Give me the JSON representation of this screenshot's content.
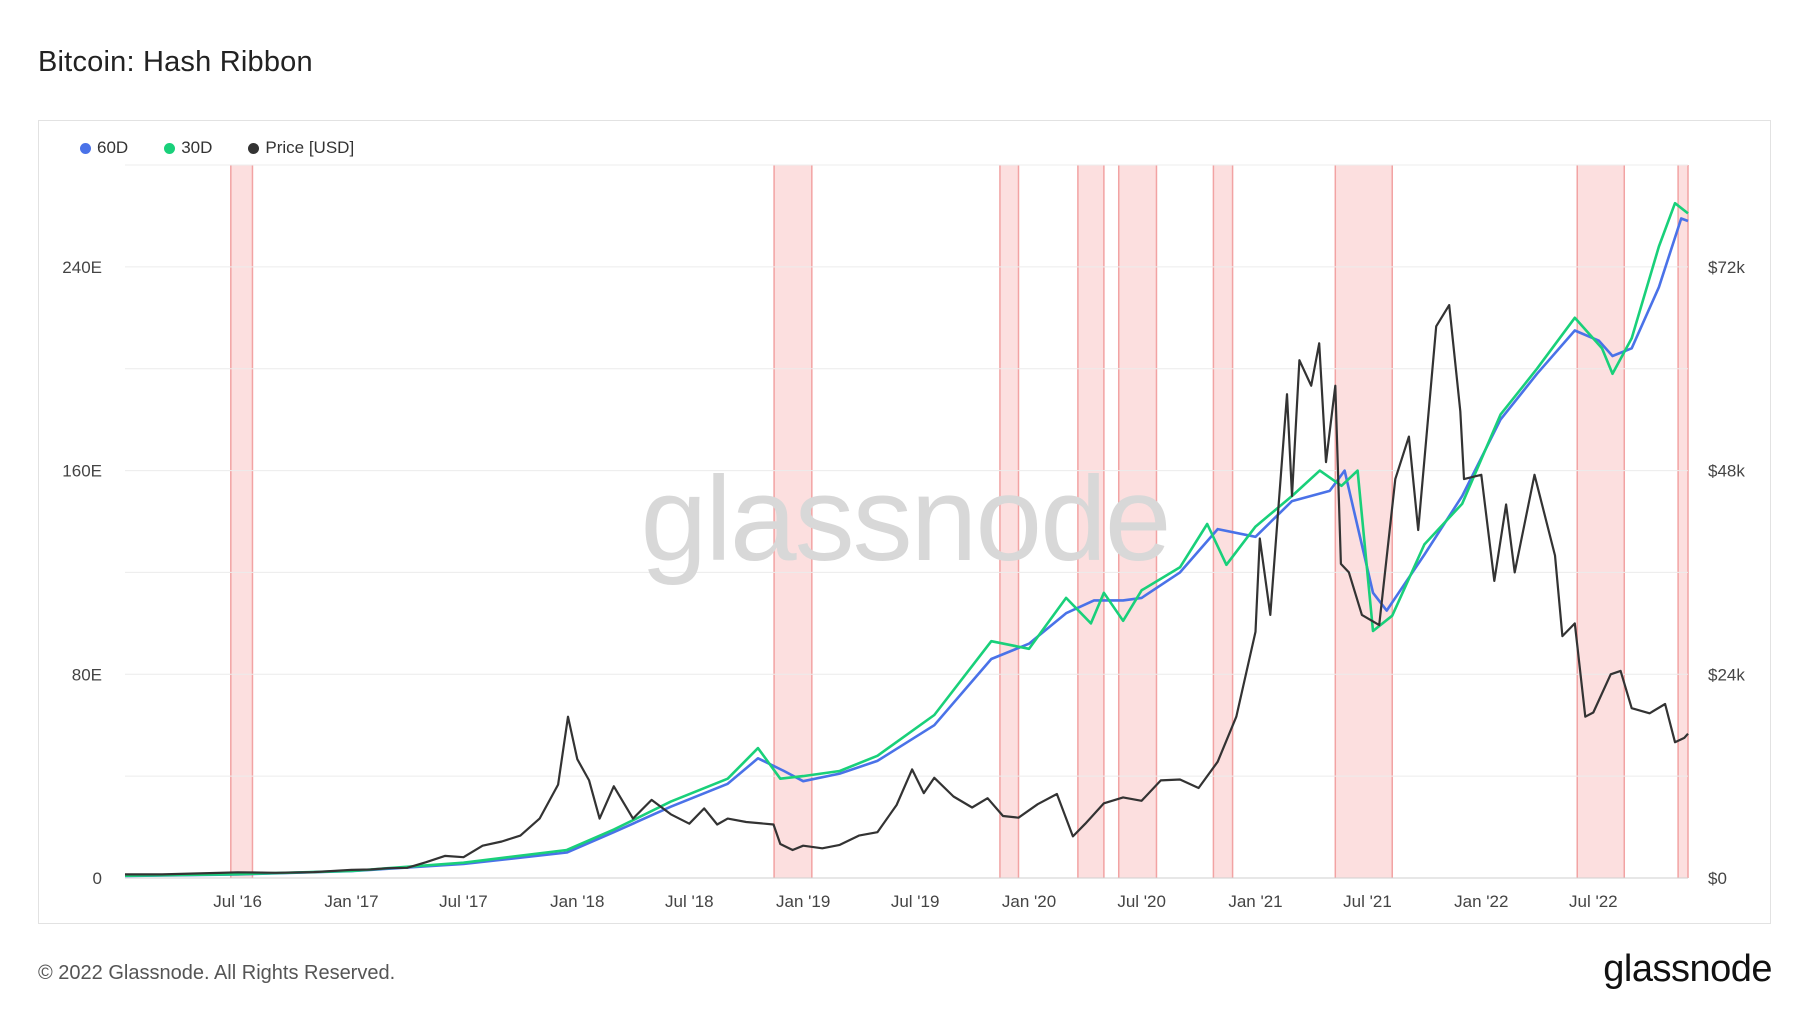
{
  "title": "Bitcoin: Hash Ribbon",
  "legend": [
    {
      "label": "60D",
      "color": "#4a72e8"
    },
    {
      "label": "30D",
      "color": "#19d07a"
    },
    {
      "label": "Price [USD]",
      "color": "#333333"
    }
  ],
  "watermark": "glassnode",
  "footer": {
    "copyright": "© 2022 Glassnode. All Rights Reserved.",
    "logo": "glassnode"
  },
  "chart_data": {
    "type": "line",
    "title": "Bitcoin: Hash Ribbon",
    "x_range": [
      "2016-01-01",
      "2022-12-01"
    ],
    "x_ticks": [
      "Jul '16",
      "Jan '17",
      "Jul '17",
      "Jan '18",
      "Jul '18",
      "Jan '19",
      "Jul '19",
      "Jan '20",
      "Jul '20",
      "Jan '21",
      "Jul '21",
      "Jan '22",
      "Jul '22"
    ],
    "y_left": {
      "ticks": [
        "0",
        "80E",
        "160E",
        "240E"
      ],
      "range": [
        0,
        280
      ]
    },
    "y_right": {
      "ticks": [
        "$0",
        "$24k",
        "$48k",
        "$72k"
      ],
      "range": [
        0,
        84000
      ]
    },
    "grid": true,
    "legend_position": "top-left",
    "miner_capitulation_bands": [
      [
        "2016-06-20",
        "2016-07-25"
      ],
      [
        "2018-11-15",
        "2019-01-15"
      ],
      [
        "2019-11-15",
        "2019-12-15"
      ],
      [
        "2020-03-20",
        "2020-05-01"
      ],
      [
        "2020-05-25",
        "2020-07-25"
      ],
      [
        "2020-10-25",
        "2020-11-25"
      ],
      [
        "2021-05-10",
        "2021-08-10"
      ],
      [
        "2022-06-05",
        "2022-08-20"
      ],
      [
        "2022-11-15",
        "2022-12-01"
      ]
    ],
    "series": [
      {
        "name": "60D",
        "axis": "left",
        "color": "#4a72e8",
        "points": [
          [
            "2016-01-01",
            0.8
          ],
          [
            "2016-07-01",
            1.4
          ],
          [
            "2017-01-01",
            2.7
          ],
          [
            "2017-07-01",
            5.5
          ],
          [
            "2017-12-15",
            10
          ],
          [
            "2018-03-01",
            18
          ],
          [
            "2018-06-01",
            28
          ],
          [
            "2018-09-01",
            37
          ],
          [
            "2018-10-20",
            47
          ],
          [
            "2018-12-01",
            42
          ],
          [
            "2019-01-01",
            38
          ],
          [
            "2019-03-01",
            41
          ],
          [
            "2019-05-01",
            46
          ],
          [
            "2019-08-01",
            60
          ],
          [
            "2019-11-01",
            86
          ],
          [
            "2020-01-01",
            92
          ],
          [
            "2020-03-01",
            104
          ],
          [
            "2020-04-15",
            109
          ],
          [
            "2020-06-01",
            109
          ],
          [
            "2020-07-01",
            110
          ],
          [
            "2020-09-01",
            120
          ],
          [
            "2020-11-01",
            137
          ],
          [
            "2021-01-01",
            134
          ],
          [
            "2021-03-01",
            148
          ],
          [
            "2021-05-01",
            152
          ],
          [
            "2021-05-25",
            160
          ],
          [
            "2021-07-10",
            112
          ],
          [
            "2021-08-01",
            105
          ],
          [
            "2021-10-01",
            127
          ],
          [
            "2021-12-01",
            150
          ],
          [
            "2022-02-01",
            180
          ],
          [
            "2022-04-01",
            198
          ],
          [
            "2022-06-01",
            215
          ],
          [
            "2022-07-10",
            211
          ],
          [
            "2022-08-01",
            205
          ],
          [
            "2022-09-01",
            208
          ],
          [
            "2022-10-15",
            232
          ],
          [
            "2022-11-20",
            259
          ],
          [
            "2022-12-01",
            258
          ]
        ]
      },
      {
        "name": "30D",
        "axis": "left",
        "color": "#19d07a",
        "points": [
          [
            "2016-01-01",
            0.9
          ],
          [
            "2016-07-01",
            1.5
          ],
          [
            "2017-01-01",
            2.8
          ],
          [
            "2017-07-01",
            6
          ],
          [
            "2017-12-15",
            11
          ],
          [
            "2018-03-01",
            19
          ],
          [
            "2018-06-01",
            30
          ],
          [
            "2018-09-01",
            39
          ],
          [
            "2018-10-20",
            51
          ],
          [
            "2018-11-25",
            39
          ],
          [
            "2019-01-01",
            40
          ],
          [
            "2019-03-01",
            42
          ],
          [
            "2019-05-01",
            48
          ],
          [
            "2019-08-01",
            64
          ],
          [
            "2019-11-01",
            93
          ],
          [
            "2020-01-01",
            90
          ],
          [
            "2020-03-01",
            110
          ],
          [
            "2020-03-25",
            104
          ],
          [
            "2020-04-10",
            100
          ],
          [
            "2020-05-01",
            112
          ],
          [
            "2020-06-01",
            101
          ],
          [
            "2020-07-01",
            113
          ],
          [
            "2020-09-01",
            122
          ],
          [
            "2020-10-15",
            139
          ],
          [
            "2020-11-15",
            123
          ],
          [
            "2021-01-01",
            138
          ],
          [
            "2021-03-01",
            150
          ],
          [
            "2021-04-15",
            160
          ],
          [
            "2021-05-20",
            154
          ],
          [
            "2021-06-15",
            160
          ],
          [
            "2021-07-10",
            97
          ],
          [
            "2021-08-10",
            103
          ],
          [
            "2021-10-01",
            131
          ],
          [
            "2021-12-01",
            147
          ],
          [
            "2022-02-01",
            182
          ],
          [
            "2022-04-01",
            200
          ],
          [
            "2022-06-01",
            220
          ],
          [
            "2022-07-15",
            208
          ],
          [
            "2022-08-01",
            198
          ],
          [
            "2022-09-01",
            212
          ],
          [
            "2022-10-15",
            248
          ],
          [
            "2022-11-10",
            265
          ],
          [
            "2022-12-01",
            261
          ]
        ]
      },
      {
        "name": "Price [USD]",
        "axis": "right",
        "color": "#333333",
        "points": [
          [
            "2016-01-01",
            430
          ],
          [
            "2016-03-01",
            420
          ],
          [
            "2016-06-01",
            600
          ],
          [
            "2016-07-01",
            670
          ],
          [
            "2016-09-01",
            610
          ],
          [
            "2016-11-01",
            700
          ],
          [
            "2017-01-01",
            960
          ],
          [
            "2017-02-01",
            1000
          ],
          [
            "2017-03-01",
            1150
          ],
          [
            "2017-04-01",
            1200
          ],
          [
            "2017-05-01",
            1850
          ],
          [
            "2017-06-01",
            2600
          ],
          [
            "2017-07-01",
            2450
          ],
          [
            "2017-08-01",
            3800
          ],
          [
            "2017-09-01",
            4300
          ],
          [
            "2017-10-01",
            5000
          ],
          [
            "2017-11-01",
            7000
          ],
          [
            "2017-12-01",
            11000
          ],
          [
            "2017-12-17",
            19000
          ],
          [
            "2018-01-01",
            14000
          ],
          [
            "2018-01-20",
            11500
          ],
          [
            "2018-02-06",
            7000
          ],
          [
            "2018-03-01",
            10800
          ],
          [
            "2018-04-01",
            7000
          ],
          [
            "2018-05-01",
            9200
          ],
          [
            "2018-06-01",
            7500
          ],
          [
            "2018-07-01",
            6400
          ],
          [
            "2018-07-25",
            8200
          ],
          [
            "2018-08-15",
            6300
          ],
          [
            "2018-09-01",
            7000
          ],
          [
            "2018-10-01",
            6600
          ],
          [
            "2018-11-14",
            6300
          ],
          [
            "2018-11-25",
            4000
          ],
          [
            "2018-12-15",
            3300
          ],
          [
            "2019-01-01",
            3800
          ],
          [
            "2019-02-01",
            3500
          ],
          [
            "2019-03-01",
            3900
          ],
          [
            "2019-04-01",
            5000
          ],
          [
            "2019-05-01",
            5400
          ],
          [
            "2019-06-01",
            8600
          ],
          [
            "2019-06-26",
            12800
          ],
          [
            "2019-07-15",
            10000
          ],
          [
            "2019-08-01",
            11800
          ],
          [
            "2019-09-01",
            9600
          ],
          [
            "2019-10-01",
            8300
          ],
          [
            "2019-10-26",
            9400
          ],
          [
            "2019-11-20",
            7300
          ],
          [
            "2019-12-15",
            7100
          ],
          [
            "2020-01-15",
            8700
          ],
          [
            "2020-02-15",
            9900
          ],
          [
            "2020-03-12",
            4900
          ],
          [
            "2020-04-01",
            6400
          ],
          [
            "2020-05-01",
            8800
          ],
          [
            "2020-06-01",
            9500
          ],
          [
            "2020-07-01",
            9100
          ],
          [
            "2020-08-01",
            11500
          ],
          [
            "2020-09-01",
            11600
          ],
          [
            "2020-10-01",
            10600
          ],
          [
            "2020-11-01",
            13700
          ],
          [
            "2020-12-01",
            19000
          ],
          [
            "2021-01-01",
            29000
          ],
          [
            "2021-01-08",
            40000
          ],
          [
            "2021-01-25",
            31000
          ],
          [
            "2021-02-21",
            57000
          ],
          [
            "2021-03-01",
            45000
          ],
          [
            "2021-03-13",
            61000
          ],
          [
            "2021-04-01",
            58000
          ],
          [
            "2021-04-14",
            63000
          ],
          [
            "2021-04-25",
            49000
          ],
          [
            "2021-05-10",
            58000
          ],
          [
            "2021-05-19",
            37000
          ],
          [
            "2021-06-01",
            36000
          ],
          [
            "2021-06-22",
            31000
          ],
          [
            "2021-07-20",
            29800
          ],
          [
            "2021-08-15",
            47000
          ],
          [
            "2021-09-06",
            52000
          ],
          [
            "2021-09-21",
            41000
          ],
          [
            "2021-10-20",
            65000
          ],
          [
            "2021-11-10",
            67500
          ],
          [
            "2021-11-28",
            55000
          ],
          [
            "2021-12-04",
            47000
          ],
          [
            "2022-01-01",
            47500
          ],
          [
            "2022-01-22",
            35000
          ],
          [
            "2022-02-10",
            44000
          ],
          [
            "2022-02-24",
            36000
          ],
          [
            "2022-03-28",
            47500
          ],
          [
            "2022-04-30",
            38000
          ],
          [
            "2022-05-12",
            28500
          ],
          [
            "2022-06-01",
            30000
          ],
          [
            "2022-06-18",
            19000
          ],
          [
            "2022-07-01",
            19500
          ],
          [
            "2022-07-29",
            24000
          ],
          [
            "2022-08-14",
            24400
          ],
          [
            "2022-09-01",
            20000
          ],
          [
            "2022-09-30",
            19400
          ],
          [
            "2022-10-25",
            20500
          ],
          [
            "2022-11-10",
            16000
          ],
          [
            "2022-11-25",
            16500
          ],
          [
            "2022-12-01",
            17000
          ]
        ]
      }
    ]
  }
}
